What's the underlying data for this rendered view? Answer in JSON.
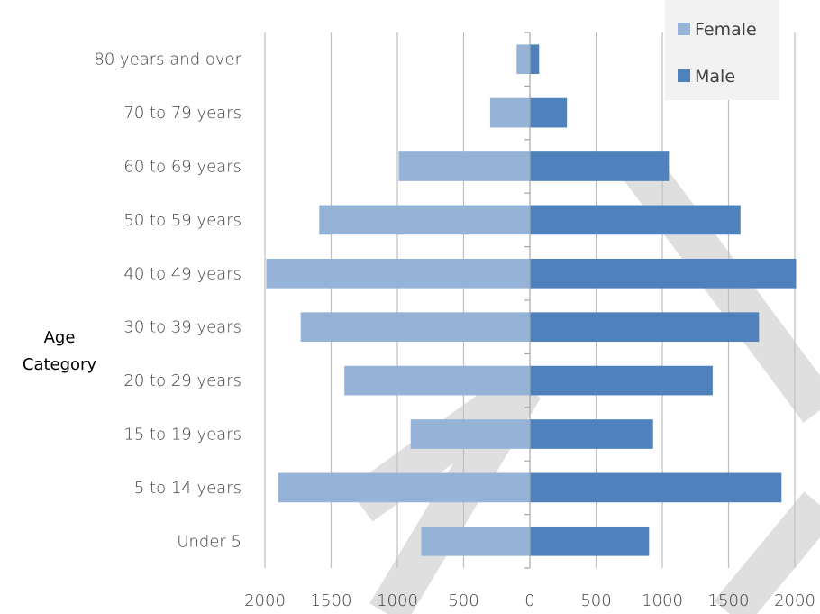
{
  "chart_data": {
    "type": "bar",
    "orientation": "horizontal",
    "layout": "population-pyramid",
    "ylabel_lines": [
      "Age",
      "Category"
    ],
    "categories": [
      "Under 5",
      "5 to 14 years",
      "15 to 19 years",
      "20 to 29 years",
      "30 to 39 years",
      "40 to 49 years",
      "50 to 59 years",
      "60 to 69 years",
      "70 to 79 years",
      "80 years and over"
    ],
    "series": [
      {
        "name": "Female",
        "side": "left",
        "color": "#95b3d7",
        "values": [
          820,
          1900,
          900,
          1400,
          1730,
          1990,
          1590,
          990,
          300,
          100
        ]
      },
      {
        "name": "Male",
        "side": "right",
        "color": "#4f81bd",
        "values": [
          900,
          1900,
          930,
          1380,
          1730,
          2010,
          1590,
          1050,
          280,
          70
        ]
      }
    ],
    "xlim": [
      -2000,
      2000
    ],
    "xticks": [
      -2000,
      -1500,
      -1000,
      -500,
      0,
      500,
      1000,
      1500,
      2000
    ],
    "xtick_labels": [
      "2000",
      "1500",
      "1000",
      "500",
      "0",
      "500",
      "1000",
      "1500",
      "2000"
    ],
    "grid": "vertical",
    "legend_position": "top-right",
    "watermark": true
  }
}
